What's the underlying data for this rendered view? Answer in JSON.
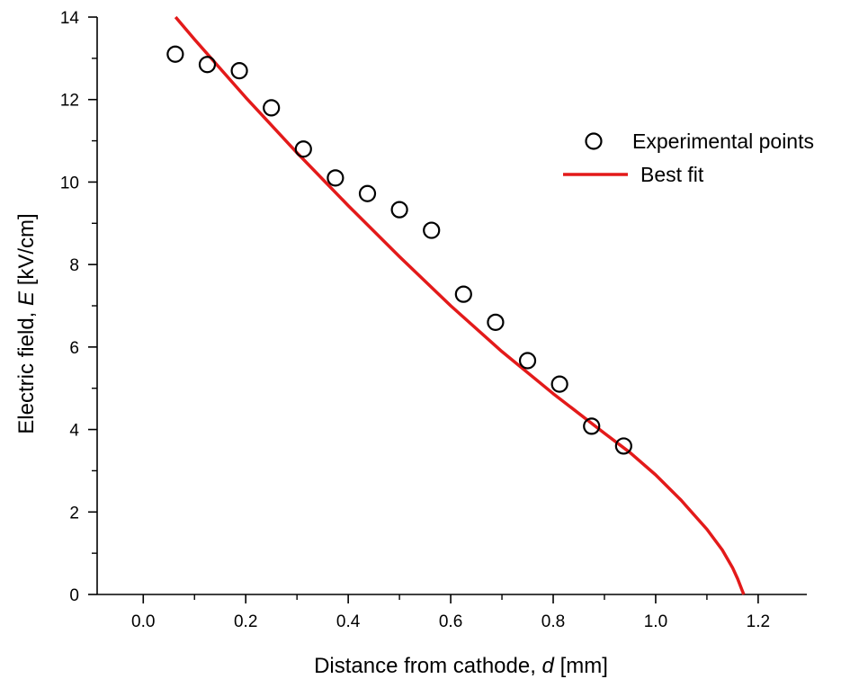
{
  "chart_data": {
    "type": "scatter",
    "xlabel": {
      "prefix": "Distance from cathode, ",
      "var": "d",
      "suffix": " [mm]"
    },
    "ylabel": {
      "prefix": "Electric field, ",
      "var": "E",
      "suffix": " [kV/cm]"
    },
    "xlim": [
      -0.09,
      1.295
    ],
    "ylim": [
      0,
      14
    ],
    "xticks": [
      "0.0",
      "0.2",
      "0.4",
      "0.6",
      "0.8",
      "1.0",
      "1.2"
    ],
    "yticks": [
      "0",
      "2",
      "4",
      "6",
      "8",
      "10",
      "12",
      "14"
    ],
    "grid": false,
    "legend_position": "top-right",
    "series": [
      {
        "name": "Experimental points",
        "kind": "scatter",
        "marker": "open-circle",
        "color": "#000000",
        "x": [
          0.0625,
          0.125,
          0.1875,
          0.25,
          0.3125,
          0.375,
          0.4375,
          0.5,
          0.5625,
          0.625,
          0.6875,
          0.75,
          0.8125,
          0.875,
          0.9375
        ],
        "y": [
          13.1,
          12.85,
          12.7,
          11.8,
          10.8,
          10.1,
          9.72,
          9.33,
          8.83,
          7.28,
          6.6,
          5.67,
          5.1,
          4.08,
          3.6
        ]
      },
      {
        "name": "Best fit",
        "kind": "line",
        "color": "#e31a1a",
        "x": [
          0.063,
          0.1,
          0.2,
          0.3,
          0.4,
          0.5,
          0.6,
          0.7,
          0.8,
          0.9,
          0.95,
          1.0,
          1.05,
          1.1,
          1.13,
          1.15,
          1.16,
          1.168,
          1.172
        ],
        "y": [
          14.0,
          13.46,
          12.05,
          10.71,
          9.43,
          8.19,
          7.0,
          5.89,
          4.87,
          3.91,
          3.44,
          2.9,
          2.28,
          1.58,
          1.08,
          0.65,
          0.38,
          0.12,
          0.0
        ]
      }
    ]
  }
}
